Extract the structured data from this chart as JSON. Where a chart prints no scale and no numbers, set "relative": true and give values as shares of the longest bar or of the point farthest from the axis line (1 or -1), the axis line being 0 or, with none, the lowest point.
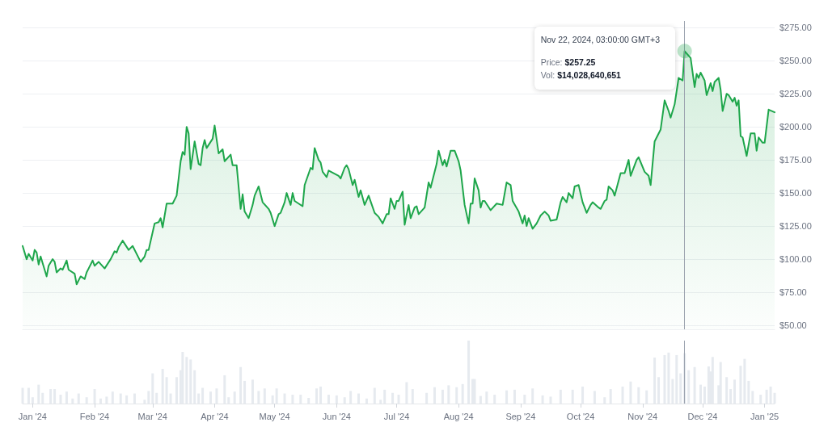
{
  "chart_data": [
    {
      "type": "area",
      "color": "#1ea64b",
      "x": [
        "2023-12-27",
        "2023-12-29",
        "2023-12-30",
        "2024-01-01",
        "2024-01-02",
        "2024-01-03",
        "2024-01-04",
        "2024-01-05",
        "2024-01-08",
        "2024-01-09",
        "2024-01-11",
        "2024-01-12",
        "2024-01-13",
        "2024-01-15",
        "2024-01-16",
        "2024-01-18",
        "2024-01-19",
        "2024-01-22",
        "2024-01-23",
        "2024-01-25",
        "2024-01-27",
        "2024-01-28",
        "2024-01-29",
        "2024-01-31",
        "2024-02-01",
        "2024-02-03",
        "2024-02-06",
        "2024-02-09",
        "2024-02-11",
        "2024-02-12",
        "2024-02-13",
        "2024-02-15",
        "2024-02-18",
        "2024-02-20",
        "2024-02-24",
        "2024-02-26",
        "2024-02-27",
        "2024-02-28",
        "2024-03-02",
        "2024-03-04",
        "2024-03-05",
        "2024-03-06",
        "2024-03-08",
        "2024-03-11",
        "2024-03-13",
        "2024-03-15",
        "2024-03-16",
        "2024-03-17",
        "2024-03-18",
        "2024-03-19",
        "2024-03-20",
        "2024-03-22",
        "2024-03-24",
        "2024-03-25",
        "2024-03-26",
        "2024-03-27",
        "2024-03-28",
        "2024-03-31",
        "2024-04-01",
        "2024-04-03",
        "2024-04-05",
        "2024-04-06",
        "2024-04-09",
        "2024-04-10",
        "2024-04-12",
        "2024-04-14",
        "2024-04-15",
        "2024-04-16",
        "2024-04-18",
        "2024-04-20",
        "2024-04-21",
        "2024-04-23",
        "2024-04-25",
        "2024-04-28",
        "2024-04-29",
        "2024-05-01",
        "2024-05-03",
        "2024-05-04",
        "2024-05-06",
        "2024-05-07",
        "2024-05-09",
        "2024-05-10",
        "2024-05-11",
        "2024-05-13",
        "2024-05-15",
        "2024-05-16",
        "2024-05-19",
        "2024-05-20",
        "2024-05-21",
        "2024-05-23",
        "2024-05-24",
        "2024-05-25",
        "2024-05-27",
        "2024-05-28",
        "2024-06-02",
        "2024-06-03",
        "2024-06-05",
        "2024-06-06",
        "2024-06-07",
        "2024-06-09",
        "2024-06-10",
        "2024-06-12",
        "2024-06-13",
        "2024-06-15",
        "2024-06-17",
        "2024-06-20",
        "2024-06-22",
        "2024-06-24",
        "2024-06-26",
        "2024-06-27",
        "2024-06-28",
        "2024-06-30",
        "2024-07-01",
        "2024-07-02",
        "2024-07-04",
        "2024-07-05",
        "2024-07-07",
        "2024-07-08",
        "2024-07-10",
        "2024-07-11",
        "2024-07-12",
        "2024-07-15",
        "2024-07-17",
        "2024-07-18",
        "2024-07-21",
        "2024-07-22",
        "2024-07-24",
        "2024-07-25",
        "2024-07-26",
        "2024-07-28",
        "2024-07-30",
        "2024-08-01",
        "2024-08-02",
        "2024-08-04",
        "2024-08-06",
        "2024-08-07",
        "2024-08-08",
        "2024-08-09",
        "2024-08-11",
        "2024-08-12",
        "2024-08-13",
        "2024-08-14",
        "2024-08-17",
        "2024-08-20",
        "2024-08-23",
        "2024-08-25",
        "2024-08-27",
        "2024-08-28",
        "2024-08-31",
        "2024-09-02",
        "2024-09-03",
        "2024-09-04",
        "2024-09-05",
        "2024-09-07",
        "2024-09-09",
        "2024-09-11",
        "2024-09-13",
        "2024-09-15",
        "2024-09-16",
        "2024-09-19",
        "2024-09-21",
        "2024-09-22",
        "2024-09-24",
        "2024-09-25",
        "2024-09-27",
        "2024-09-28",
        "2024-09-30",
        "2024-10-02",
        "2024-10-04",
        "2024-10-06",
        "2024-10-07",
        "2024-10-10",
        "2024-10-11",
        "2024-10-13",
        "2024-10-14",
        "2024-10-15",
        "2024-10-17",
        "2024-10-18",
        "2024-10-21",
        "2024-10-23",
        "2024-10-25",
        "2024-10-26",
        "2024-10-29",
        "2024-10-30",
        "2024-11-02",
        "2024-11-04",
        "2024-11-05",
        "2024-11-07",
        "2024-11-10",
        "2024-11-12",
        "2024-11-14",
        "2024-11-15",
        "2024-11-17",
        "2024-11-19",
        "2024-11-21",
        "2024-11-22",
        "2024-11-25",
        "2024-11-27",
        "2024-11-28",
        "2024-11-29",
        "2024-11-30",
        "2024-12-02",
        "2024-12-03",
        "2024-12-05",
        "2024-12-06",
        "2024-12-07",
        "2024-12-09",
        "2024-12-10",
        "2024-12-11",
        "2024-12-13",
        "2024-12-14",
        "2024-12-16",
        "2024-12-17",
        "2024-12-18",
        "2024-12-19",
        "2024-12-20",
        "2024-12-21",
        "2024-12-23",
        "2024-12-25",
        "2024-12-27",
        "2024-12-28",
        "2024-12-29",
        "2024-12-31",
        "2025-01-01",
        "2025-01-03",
        "2025-01-06"
      ],
      "values": [
        110,
        100,
        104,
        99,
        107,
        105,
        96,
        102,
        87,
        95,
        100,
        98,
        90,
        93,
        92,
        99,
        92,
        89,
        81,
        87,
        85,
        90,
        93,
        99,
        95,
        98,
        93,
        100,
        106,
        105,
        109,
        114,
        107,
        110,
        98,
        102,
        107,
        107,
        127,
        128,
        131,
        124,
        142,
        142,
        148,
        174,
        181,
        179,
        200,
        195,
        168,
        189,
        172,
        171,
        184,
        190,
        184,
        191,
        201,
        180,
        183,
        174,
        179,
        171,
        171,
        138,
        149,
        136,
        131,
        141,
        148,
        155,
        143,
        138,
        135,
        125,
        134,
        135,
        143,
        150,
        141,
        150,
        144,
        142,
        140,
        156,
        169,
        168,
        184,
        175,
        173,
        166,
        162,
        167,
        163,
        161,
        169,
        171,
        168,
        156,
        160,
        147,
        152,
        141,
        148,
        135,
        132,
        127,
        134,
        134,
        146,
        138,
        144,
        144,
        151,
        126,
        141,
        131,
        139,
        140,
        134,
        139,
        158,
        154,
        172,
        182,
        171,
        175,
        170,
        182,
        182,
        174,
        167,
        141,
        127,
        142,
        142,
        161,
        152,
        139,
        144,
        144,
        137,
        142,
        141,
        158,
        156,
        144,
        136,
        127,
        133,
        125,
        131,
        123,
        127,
        133,
        136,
        133,
        129,
        130,
        143,
        147,
        143,
        150,
        146,
        155,
        156,
        143,
        135,
        141,
        143,
        139,
        138,
        144,
        145,
        155,
        152,
        148,
        165,
        165,
        175,
        163,
        175,
        177,
        166,
        163,
        156,
        189,
        198,
        220,
        212,
        207,
        217,
        237,
        235,
        257.25,
        252,
        230,
        240,
        237,
        241,
        235,
        224,
        233,
        227,
        234,
        237,
        228,
        212,
        225,
        224,
        219,
        222,
        216,
        220,
        193,
        192,
        178,
        195,
        195,
        182,
        192,
        188,
        188,
        213,
        211
      ],
      "xlim": [
        "2023-12-27",
        "2025-01-06"
      ],
      "ylim": [
        47,
        280
      ],
      "yticks": [
        {
          "value": 50,
          "label": "$50.00"
        },
        {
          "value": 75,
          "label": "$75.00"
        },
        {
          "value": 100,
          "label": "$100.00"
        },
        {
          "value": 125,
          "label": "$125.00"
        },
        {
          "value": 150,
          "label": "$150.00"
        },
        {
          "value": 175,
          "label": "$175.00"
        },
        {
          "value": 200,
          "label": "$200.00"
        },
        {
          "value": 225,
          "label": "$225.00"
        },
        {
          "value": 250,
          "label": "$250.00"
        },
        {
          "value": 275,
          "label": "$275.00"
        }
      ],
      "grid": "y",
      "tick_labels": "y",
      "ref_lines": [
        {
          "axis": "x",
          "value": "2024-11-22",
          "color": "#9ca3af"
        }
      ],
      "annotations": [
        "Nov 22, 2024, 03:00:00 GMT+3",
        "Price: $257.25",
        "Vol: $14,028,640,651"
      ]
    },
    {
      "type": "bar",
      "color": "#e6eaef",
      "relative": true,
      "x": [
        "2023-12-27",
        "2023-12-30",
        "2024-01-01",
        "2024-01-04",
        "2024-01-06",
        "2024-01-10",
        "2024-01-12",
        "2024-01-15",
        "2024-01-18",
        "2024-01-21",
        "2024-01-24",
        "2024-01-28",
        "2024-02-01",
        "2024-02-04",
        "2024-02-07",
        "2024-02-10",
        "2024-02-14",
        "2024-02-17",
        "2024-02-21",
        "2024-02-26",
        "2024-02-28",
        "2024-03-01",
        "2024-03-03",
        "2024-03-06",
        "2024-03-08",
        "2024-03-10",
        "2024-03-13",
        "2024-03-15",
        "2024-03-16",
        "2024-03-18",
        "2024-03-20",
        "2024-03-22",
        "2024-03-24",
        "2024-03-26",
        "2024-03-30",
        "2024-04-02",
        "2024-04-06",
        "2024-04-08",
        "2024-04-11",
        "2024-04-14",
        "2024-04-16",
        "2024-04-20",
        "2024-04-23",
        "2024-04-26",
        "2024-04-30",
        "2024-05-02",
        "2024-05-06",
        "2024-05-10",
        "2024-05-14",
        "2024-05-18",
        "2024-05-22",
        "2024-05-24",
        "2024-05-28",
        "2024-06-01",
        "2024-06-05",
        "2024-06-08",
        "2024-06-12",
        "2024-06-16",
        "2024-06-20",
        "2024-06-23",
        "2024-06-25",
        "2024-06-29",
        "2024-07-02",
        "2024-07-06",
        "2024-07-09",
        "2024-07-16",
        "2024-07-20",
        "2024-07-24",
        "2024-07-27",
        "2024-07-31",
        "2024-08-03",
        "2024-08-06",
        "2024-08-08",
        "2024-08-09",
        "2024-08-12",
        "2024-08-15",
        "2024-08-19",
        "2024-08-25",
        "2024-08-29",
        "2024-09-03",
        "2024-09-07",
        "2024-09-12",
        "2024-09-16",
        "2024-09-21",
        "2024-09-27",
        "2024-10-02",
        "2024-10-08",
        "2024-10-13",
        "2024-10-16",
        "2024-10-22",
        "2024-10-26",
        "2024-10-30",
        "2024-11-03",
        "2024-11-07",
        "2024-11-09",
        "2024-11-12",
        "2024-11-14",
        "2024-11-16",
        "2024-11-18",
        "2024-11-20",
        "2024-11-22",
        "2024-11-24",
        "2024-11-27",
        "2024-11-30",
        "2024-12-02",
        "2024-12-04",
        "2024-12-05",
        "2024-12-06",
        "2024-12-09",
        "2024-12-10",
        "2024-12-13",
        "2024-12-15",
        "2024-12-17",
        "2024-12-20",
        "2024-12-22",
        "2024-12-24",
        "2024-12-26",
        "2024-12-30",
        "2025-01-02",
        "2025-01-04",
        "2025-01-06"
      ],
      "values": [
        0.25,
        0.25,
        0.1,
        0.3,
        0.17,
        0.23,
        0.23,
        0.14,
        0.19,
        0.08,
        0.16,
        0.1,
        0.23,
        0.08,
        0.11,
        0.19,
        0.16,
        0.13,
        0.16,
        0.06,
        0.2,
        0.48,
        0.17,
        0.55,
        0.42,
        0.16,
        0.42,
        0.53,
        0.82,
        0.74,
        0.7,
        0.53,
        0.16,
        0.25,
        0.19,
        0.24,
        0.45,
        0.1,
        0.19,
        0.58,
        0.36,
        0.38,
        0.2,
        0.24,
        0.13,
        0.24,
        0.16,
        0.14,
        0.14,
        0.09,
        0.24,
        0.27,
        0.14,
        0.13,
        0.1,
        0.2,
        0.16,
        0.08,
        0.25,
        0.06,
        0.22,
        0.17,
        0.14,
        0.34,
        0.23,
        0.17,
        0.26,
        0.22,
        0.29,
        0.26,
        0.31,
        1,
        0.39,
        0.39,
        0.12,
        0.19,
        0.14,
        0.21,
        0.22,
        0.14,
        0.24,
        0.13,
        0.11,
        0.22,
        0.22,
        0.27,
        0.2,
        0.1,
        0.23,
        0.27,
        0.35,
        0.26,
        0.21,
        0.73,
        0.42,
        0.77,
        0.81,
        0.39,
        0.77,
        0.48,
        0.8,
        0.53,
        0.58,
        0.3,
        0.27,
        0.59,
        0.51,
        0.74,
        0.29,
        0.66,
        0.42,
        0.23,
        0.38,
        0.6,
        0.71,
        0.36,
        0.2,
        0.14,
        0.22,
        0.27,
        0.17
      ],
      "xlim": [
        "2023-12-27",
        "2025-01-06"
      ],
      "xticks": [
        {
          "value": "2024-01-01",
          "label": "Jan '24"
        },
        {
          "value": "2024-02-01",
          "label": "Feb '24"
        },
        {
          "value": "2024-03-01",
          "label": "Mar '24"
        },
        {
          "value": "2024-04-01",
          "label": "Apr '24"
        },
        {
          "value": "2024-05-01",
          "label": "May '24"
        },
        {
          "value": "2024-06-01",
          "label": "Jun '24"
        },
        {
          "value": "2024-07-01",
          "label": "Jul '24"
        },
        {
          "value": "2024-08-01",
          "label": "Aug '24"
        },
        {
          "value": "2024-09-01",
          "label": "Sep '24"
        },
        {
          "value": "2024-10-01",
          "label": "Oct '24"
        },
        {
          "value": "2024-11-01",
          "label": "Nov '24"
        },
        {
          "value": "2024-12-01",
          "label": "Dec '24"
        },
        {
          "value": "2025-01-01",
          "label": "Jan '25"
        }
      ],
      "tick_labels": "x",
      "ref_lines": [
        {
          "axis": "x",
          "value": "2024-11-22",
          "color": "#9ca3af"
        }
      ]
    }
  ]
}
